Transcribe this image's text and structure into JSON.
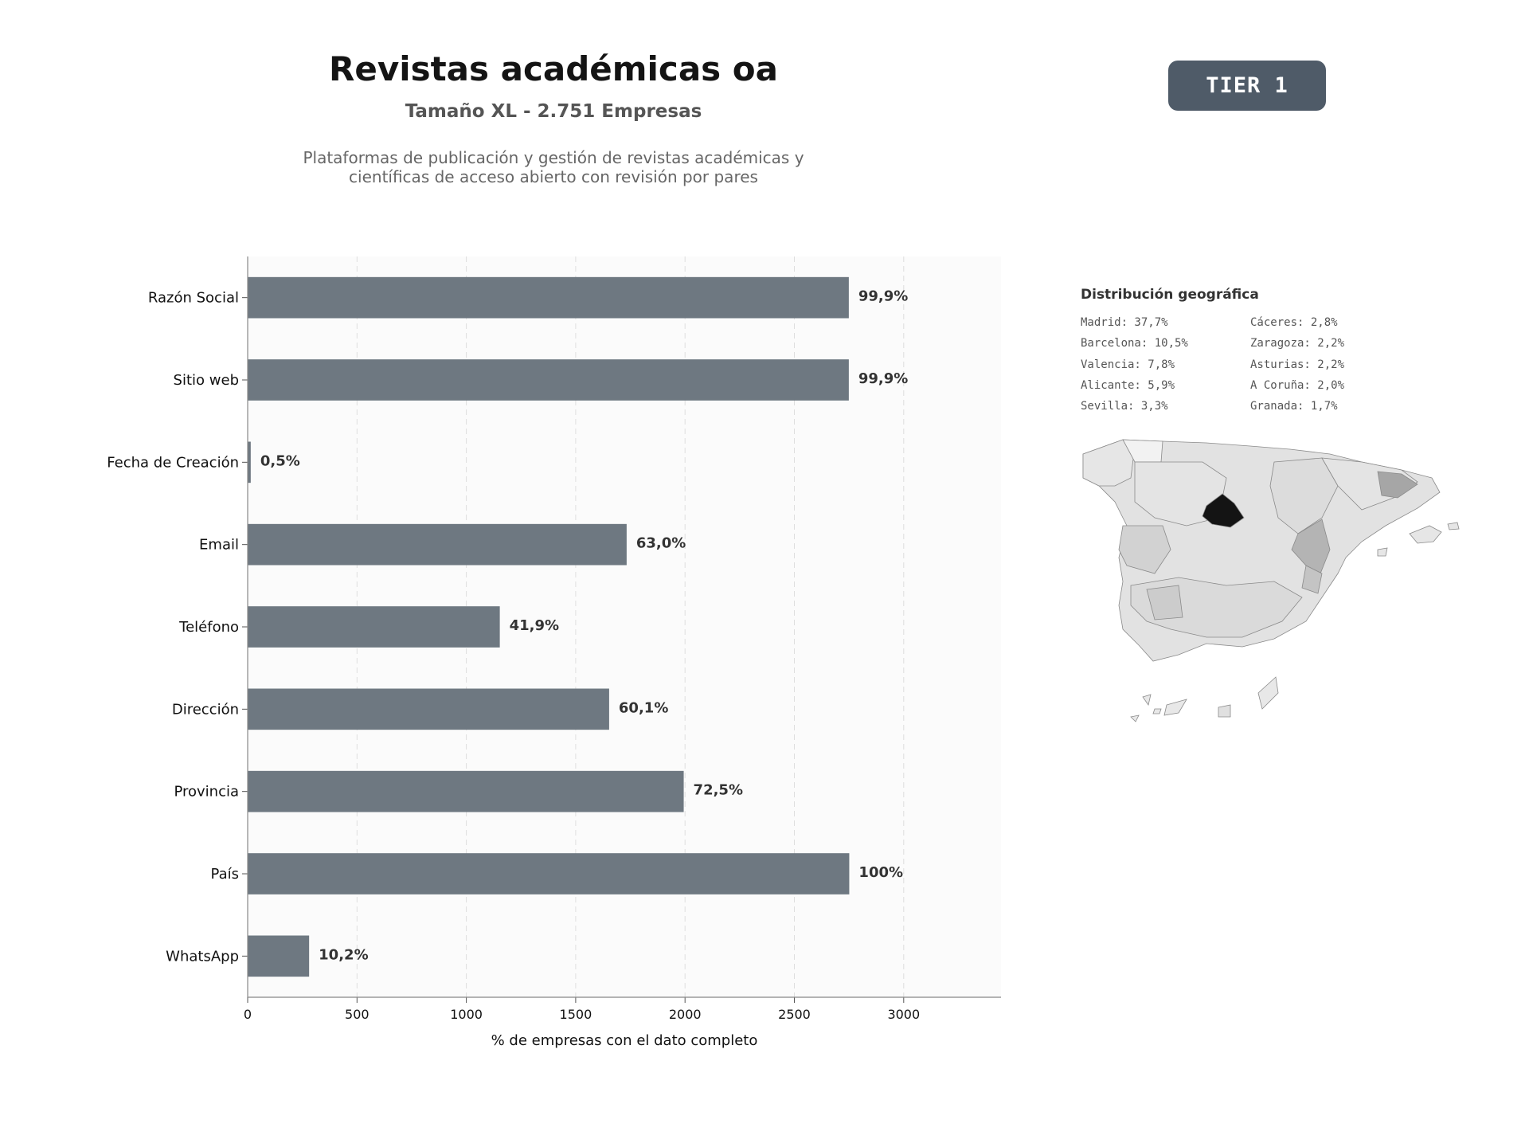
{
  "header": {
    "title": "Revistas académicas oa",
    "subtitle": "Tamaño XL - 2.751 Empresas",
    "description": "Plataformas de publicación y gestión de revistas académicas y científicas de acceso abierto con revisión por pares",
    "badge": "TIER 1"
  },
  "chart_data": {
    "type": "bar",
    "orientation": "horizontal",
    "categories": [
      "Razón Social",
      "Sitio web",
      "Fecha de Creación",
      "Email",
      "Teléfono",
      "Dirección",
      "Provincia",
      "País",
      "WhatsApp"
    ],
    "values": [
      2749,
      2749,
      14,
      1733,
      1153,
      1653,
      1994,
      2751,
      281
    ],
    "data_labels": [
      "99,9%",
      "99,9%",
      "0,5%",
      "63,0%",
      "41,9%",
      "60,1%",
      "72,5%",
      "100%",
      "10,2%"
    ],
    "xlabel": "% de empresas con el dato completo",
    "ylabel": "",
    "xlim": [
      0,
      3445
    ],
    "xticks": [
      0,
      500,
      1000,
      1500,
      2000,
      2500,
      3000
    ],
    "grid": "x-dashed",
    "bar_color": "#6e7881"
  },
  "geo": {
    "title": "Distribución geográfica",
    "items": [
      "Madrid: 37,7%",
      "Cáceres: 2,8%",
      "Barcelona: 10,5%",
      "Zaragoza: 2,2%",
      "Valencia: 7,8%",
      "Asturias: 2,2%",
      "Alicante: 5,9%",
      "A Coruña: 2,0%",
      "Sevilla: 3,3%",
      "Granada: 1,7%"
    ]
  }
}
